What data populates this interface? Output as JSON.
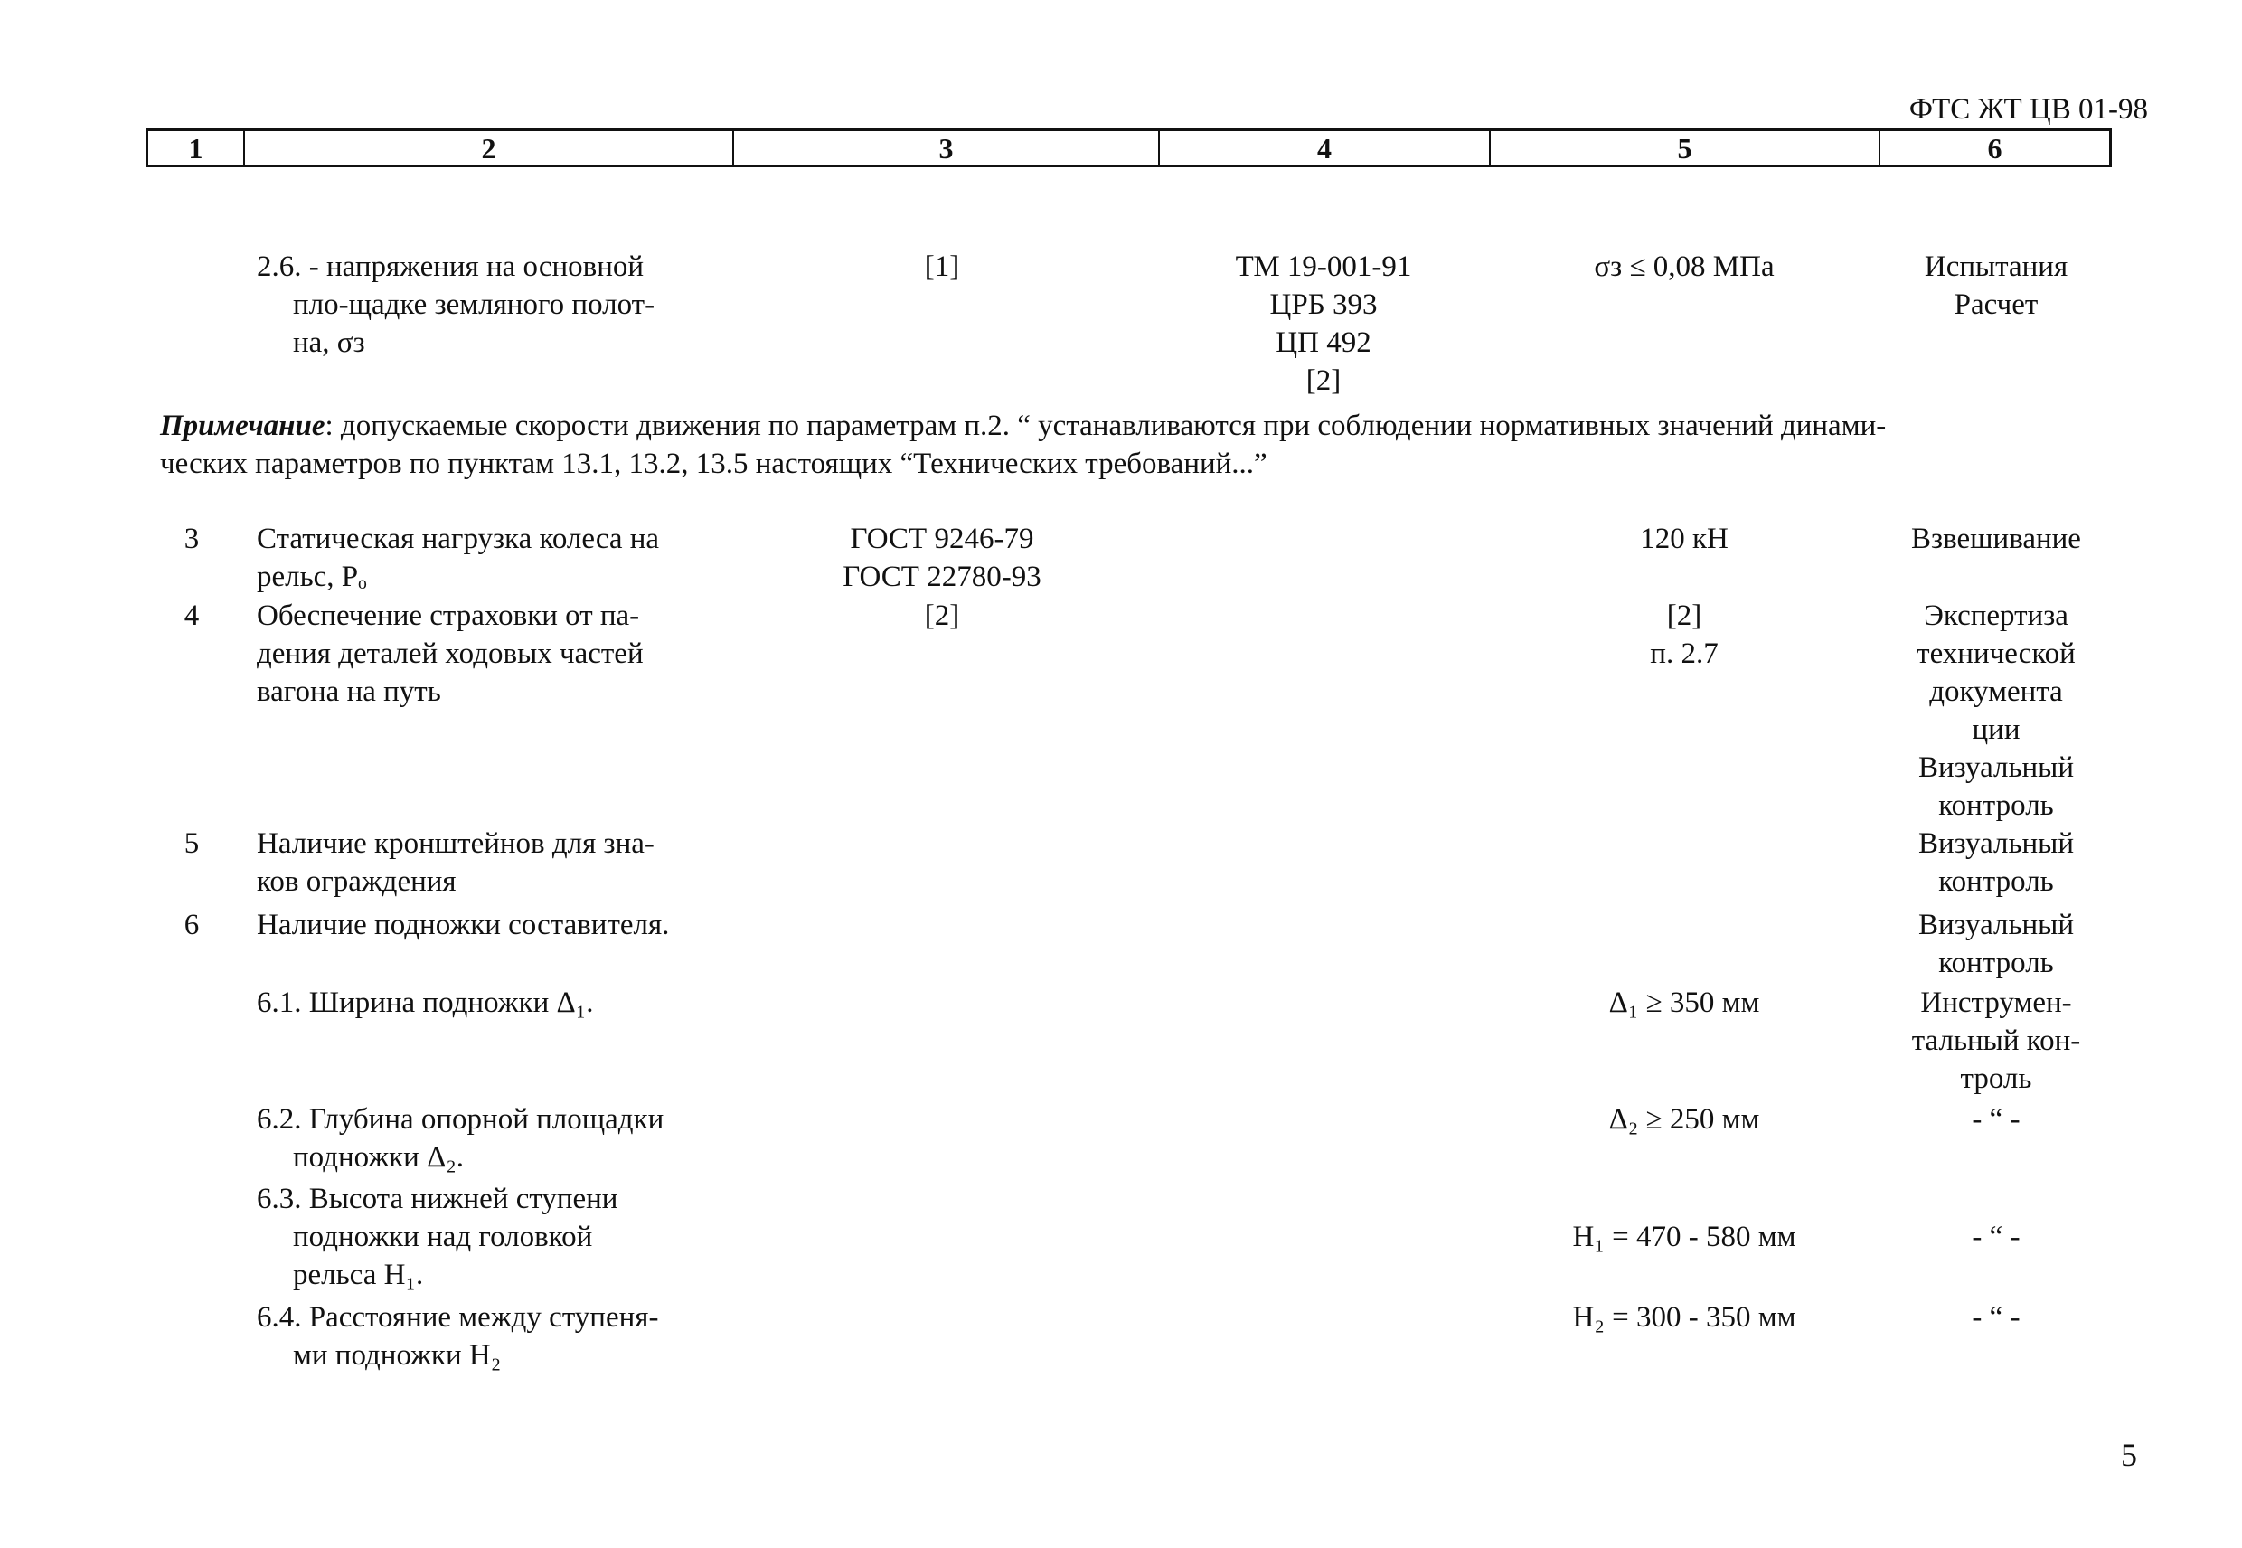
{
  "doc_code": "ФТС ЖТ ЦВ 01-98",
  "header_columns": [
    "1",
    "2",
    "3",
    "4",
    "5",
    "6"
  ],
  "rows": [
    {
      "num": "",
      "name": [
        "2.6. - напряжения на основной",
        "пло-щадке земляного полот-",
        "на, σз"
      ],
      "col3": [
        "[1]"
      ],
      "col4": [
        "ТМ 19-001-91",
        "ЦРБ 393",
        "ЦП 492",
        "[2]"
      ],
      "col5": [
        "σз ≤ 0,08 МПа"
      ],
      "col6": [
        "Испытания",
        "Расчет"
      ]
    },
    {
      "num": "3",
      "name": [
        "Статическая нагрузка колеса на",
        "рельс, Pₒ"
      ],
      "col3": [
        "ГОСТ 9246-79",
        "ГОСТ 22780-93"
      ],
      "col4": [],
      "col5": [
        "120 кН"
      ],
      "col6": [
        "Взвешивание"
      ]
    },
    {
      "num": "4",
      "name": [
        "Обеспечение страховки от па-",
        "дения деталей ходовых частей",
        "вагона на путь"
      ],
      "col3": [
        "[2]"
      ],
      "col4": [],
      "col5": [
        "[2]",
        "п. 2.7"
      ],
      "col6": [
        "Экспертиза",
        "технической",
        "документа",
        "ции",
        "Визуальный",
        "контроль"
      ]
    },
    {
      "num": "5",
      "name": [
        "Наличие кронштейнов для зна-",
        "ков ограждения"
      ],
      "col3": [],
      "col4": [],
      "col5": [],
      "col6": [
        "Визуальный",
        "контроль"
      ]
    },
    {
      "num": "6",
      "name": [
        "Наличие подножки составителя."
      ],
      "col3": [],
      "col4": [],
      "col5": [],
      "col6": [
        "Визуальный",
        "контроль"
      ]
    },
    {
      "num": "",
      "name": [
        "6.1. Ширина подножки Δ₁."
      ],
      "col3": [],
      "col4": [],
      "col5": [
        "Δ₁ ≥ 350 мм"
      ],
      "col6": [
        "Инструмен-",
        "тальный кон-",
        "троль"
      ]
    },
    {
      "num": "",
      "name": [
        "6.2. Глубина опорной площадки",
        "подножки Δ₂."
      ],
      "col3": [],
      "col4": [],
      "col5": [
        "Δ₂ ≥ 250 мм"
      ],
      "col6": [
        "- “ -"
      ]
    },
    {
      "num": "",
      "name": [
        "6.3. Высота нижней ступени",
        "подножки над головкой",
        "рельса H₁."
      ],
      "col3": [],
      "col4": [],
      "col5": [
        "",
        "H₁ = 470 - 580 мм"
      ],
      "col6": [
        "",
        "- “ -"
      ]
    },
    {
      "num": "",
      "name": [
        "6.4. Расстояние между ступеня-",
        "ми подножки H₂"
      ],
      "col3": [],
      "col4": [],
      "col5": [
        "H₂ = 300 - 350 мм"
      ],
      "col6": [
        "- “ -"
      ]
    }
  ],
  "note": {
    "label": "Примечание",
    "text1": ": допускаемые скорости движения по параметрам п.2. “ устанавливаются при соблюдении нормативных значений динами-",
    "text2": "ческих параметров по пунктам 13.1, 13.2, 13.5 настоящих “Технических требований...”"
  },
  "page_number": "5"
}
